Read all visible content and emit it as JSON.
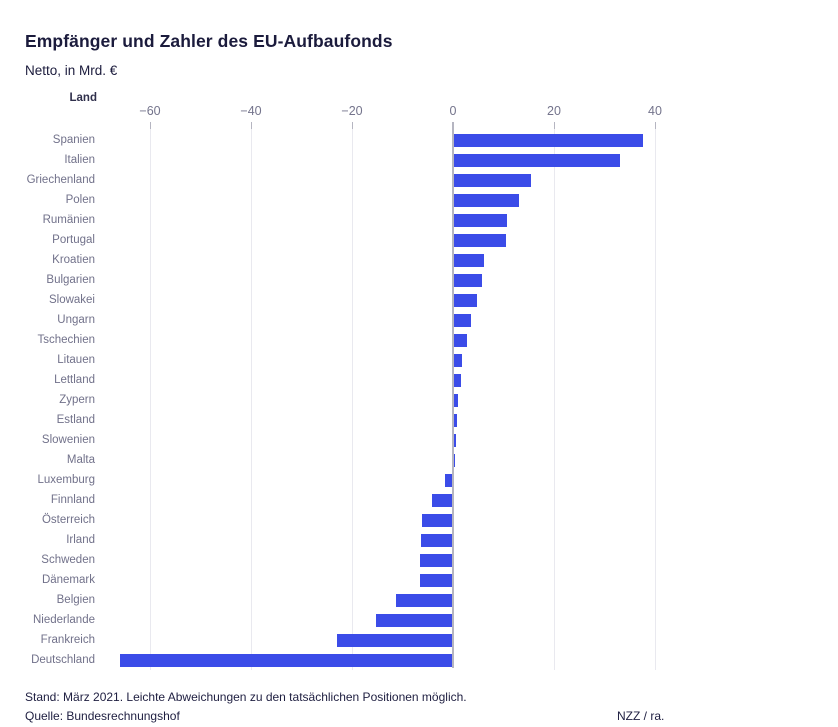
{
  "header": {
    "title": "Empfänger und Zahler des EU-Aufbaufonds",
    "subtitle": "Netto, in Mrd. €"
  },
  "chart_data": {
    "type": "bar",
    "orientation": "horizontal",
    "title": "Empfänger und Zahler des EU-Aufbaufonds",
    "subtitle": "Netto, in Mrd. €",
    "column_header": "Land",
    "categories": [
      "Spanien",
      "Italien",
      "Griechenland",
      "Polen",
      "Rumänien",
      "Portugal",
      "Kroatien",
      "Bulgarien",
      "Slowakei",
      "Ungarn",
      "Tschechien",
      "Litauen",
      "Lettland",
      "Zypern",
      "Estland",
      "Slowenien",
      "Malta",
      "Luxemburg",
      "Finnland",
      "Österreich",
      "Irland",
      "Schweden",
      "Dänemark",
      "Belgien",
      "Niederlande",
      "Frankreich",
      "Deutschland"
    ],
    "values": [
      37.5,
      32.8,
      15.2,
      12.8,
      10.5,
      10.2,
      5.9,
      5.6,
      4.6,
      3.4,
      2.5,
      1.5,
      1.4,
      0.7,
      0.5,
      0.3,
      0.1,
      -1.3,
      -3.9,
      -5.9,
      -6.2,
      -6.3,
      -6.4,
      -11.1,
      -15.0,
      -22.8,
      -65.7
    ],
    "xlabel": "",
    "ylabel": "Land",
    "xlim": [
      -66,
      41
    ],
    "x_ticks": [
      -60,
      -40,
      -20,
      0,
      20,
      40
    ],
    "x_tick_labels": [
      "−60",
      "−40",
      "−20",
      "0",
      "20",
      "40"
    ],
    "grid": true,
    "zero_line": true,
    "legend": false,
    "bar_color": "#3b4ce8",
    "gridline_color": "#e9e9ef",
    "axis_line_color": "#b5b5c1",
    "label_color": "#71718a"
  },
  "footer": {
    "note": "Stand: März 2021. Leichte Abweichungen zu den tatsächlichen Positionen möglich.",
    "source": "Quelle: Bundesrechnungshof",
    "credit": "NZZ / ra."
  }
}
